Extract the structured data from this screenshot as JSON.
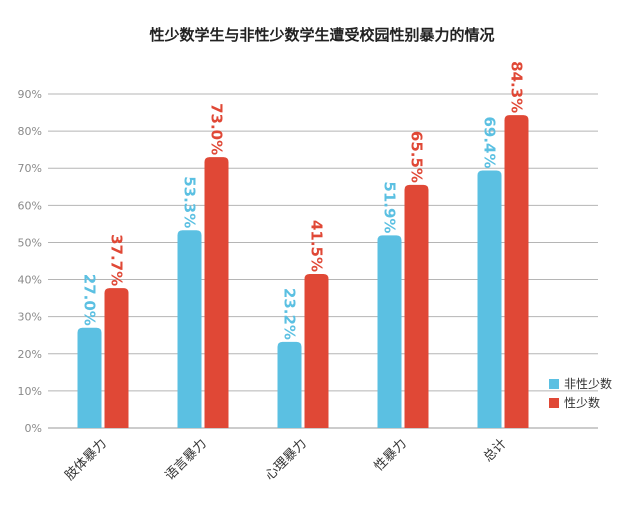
{
  "chart_data": {
    "type": "bar",
    "title": "性少数学生与非性少数学生遭受校园性别暴力的情况",
    "categories": [
      "肢体暴力",
      "语言暴力",
      "心理暴力",
      "性暴力",
      "总计"
    ],
    "series": [
      {
        "name": "非性少数",
        "color": "#5bc0e2",
        "values": [
          27.0,
          53.3,
          23.2,
          51.9,
          69.4
        ],
        "labels": [
          "27.0%",
          "53.3%",
          "23.2%",
          "51.9%",
          "69.4%"
        ]
      },
      {
        "name": "性少数",
        "color": "#e04836",
        "values": [
          37.7,
          73.0,
          41.5,
          65.5,
          84.3
        ],
        "labels": [
          "37.7%",
          "73.0%",
          "41.5%",
          "65.5%",
          "84.3%"
        ]
      }
    ],
    "ylim": [
      0,
      90
    ],
    "yticks": [
      "0%",
      "10%",
      "20%",
      "30%",
      "40%",
      "50%",
      "60%",
      "70%",
      "80%",
      "90%"
    ],
    "grid": true,
    "legend_position": "bottom-right"
  }
}
